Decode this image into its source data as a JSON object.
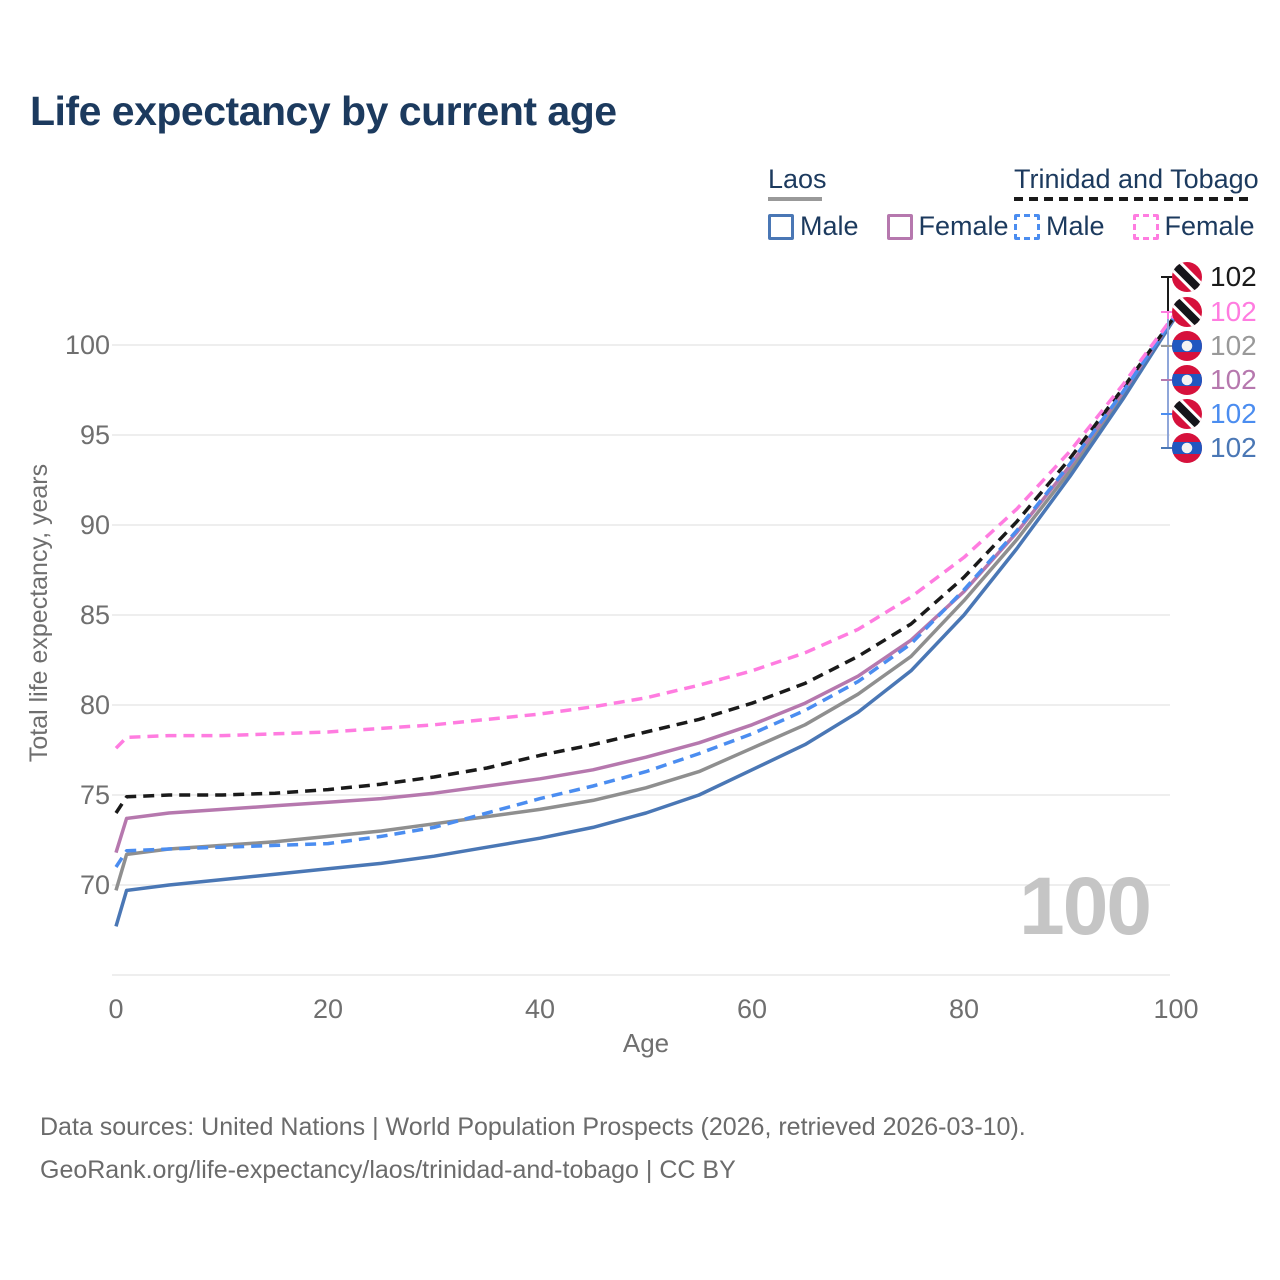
{
  "title": "Life expectancy by current age",
  "colors": {
    "title_text": "#1c3a5e",
    "axis_text": "#6f6f6f",
    "grid": "#e8e8e8",
    "watermark": "#c5c5c5",
    "footer_text": "#6b6b6b"
  },
  "legend": {
    "groups": [
      {
        "label": "Laos",
        "underline_color": "#999999",
        "underline_style": "solid",
        "items": [
          {
            "label": "Male",
            "color": "#4a77b5",
            "line_style": "solid"
          },
          {
            "label": "Female",
            "color": "#b678ae",
            "line_style": "solid"
          }
        ]
      },
      {
        "label": "Trinidad and Tobago",
        "underline_color": "#1a1a1a",
        "underline_style": "dashed",
        "items": [
          {
            "label": "Male",
            "color": "#4b8df0",
            "line_style": "dashed"
          },
          {
            "label": "Female",
            "color": "#ff7ce0",
            "line_style": "dashed"
          }
        ]
      }
    ]
  },
  "chart_data": {
    "type": "line",
    "title": "Life expectancy by current age",
    "xlabel": "Age",
    "ylabel": "Total life expectancy, years",
    "xlim": [
      0,
      100
    ],
    "ylim": [
      65,
      103
    ],
    "x_ticks": [
      0,
      20,
      40,
      60,
      80,
      100
    ],
    "y_ticks": [
      70,
      75,
      80,
      85,
      90,
      95,
      100
    ],
    "grid": "horizontal",
    "legend_position": "top-right",
    "x": [
      0,
      1,
      5,
      10,
      15,
      20,
      25,
      30,
      35,
      40,
      45,
      50,
      55,
      60,
      65,
      70,
      75,
      80,
      85,
      90,
      95,
      100
    ],
    "series": [
      {
        "id": "laos-both",
        "name": "Laos — Both sexes",
        "color": "#8f8f8f",
        "dash": false,
        "values": [
          69.7,
          71.7,
          72.0,
          72.2,
          72.4,
          72.7,
          73.0,
          73.4,
          73.8,
          74.2,
          74.7,
          75.4,
          76.3,
          77.6,
          78.9,
          80.6,
          82.7,
          85.8,
          89.2,
          93.0,
          97.2,
          101.6
        ]
      },
      {
        "id": "laos-male",
        "name": "Laos — Male",
        "color": "#4a77b5",
        "dash": false,
        "values": [
          67.7,
          69.7,
          70.0,
          70.3,
          70.6,
          70.9,
          71.2,
          71.6,
          72.1,
          72.6,
          73.2,
          74.0,
          75.0,
          76.4,
          77.8,
          79.6,
          81.9,
          85.0,
          88.7,
          92.7,
          97.0,
          101.6
        ]
      },
      {
        "id": "laos-female",
        "name": "Laos — Female",
        "color": "#b678ae",
        "dash": false,
        "values": [
          71.8,
          73.7,
          74.0,
          74.2,
          74.4,
          74.6,
          74.8,
          75.1,
          75.5,
          75.9,
          76.4,
          77.1,
          77.9,
          78.9,
          80.1,
          81.6,
          83.6,
          86.3,
          89.6,
          93.3,
          97.4,
          101.7
        ]
      },
      {
        "id": "tt-both",
        "name": "Trinidad and Tobago — Both sexes",
        "color": "#1a1a1a",
        "dash": true,
        "values": [
          74.0,
          74.9,
          75.0,
          75.0,
          75.1,
          75.3,
          75.6,
          76.0,
          76.5,
          77.2,
          77.8,
          78.5,
          79.2,
          80.1,
          81.2,
          82.7,
          84.5,
          87.1,
          90.2,
          93.7,
          97.6,
          101.7
        ]
      },
      {
        "id": "tt-male",
        "name": "Trinidad and Tobago — Male",
        "color": "#4b8df0",
        "dash": true,
        "values": [
          71.0,
          71.9,
          72.0,
          72.1,
          72.2,
          72.3,
          72.7,
          73.2,
          74.0,
          74.8,
          75.5,
          76.3,
          77.3,
          78.4,
          79.7,
          81.3,
          83.4,
          86.4,
          89.7,
          93.4,
          97.4,
          101.7
        ]
      },
      {
        "id": "tt-female",
        "name": "Trinidad and Tobago — Female",
        "color": "#ff7ce0",
        "dash": true,
        "values": [
          77.6,
          78.2,
          78.3,
          78.3,
          78.4,
          78.5,
          78.7,
          78.9,
          79.2,
          79.5,
          79.9,
          80.4,
          81.1,
          81.9,
          82.9,
          84.2,
          86.0,
          88.2,
          90.9,
          94.1,
          97.8,
          101.8
        ]
      }
    ]
  },
  "endpoints": {
    "items": [
      {
        "flag": "trinidad-and-tobago",
        "value": "102",
        "color": "#1a1a1a"
      },
      {
        "flag": "trinidad-and-tobago",
        "value": "102",
        "color": "#ff7ce0"
      },
      {
        "flag": "laos",
        "value": "102",
        "color": "#999999"
      },
      {
        "flag": "laos",
        "value": "102",
        "color": "#b678ae"
      },
      {
        "flag": "trinidad-and-tobago",
        "value": "102",
        "color": "#4b8df0"
      },
      {
        "flag": "laos",
        "value": "102",
        "color": "#4a77b5"
      }
    ]
  },
  "watermark": "100",
  "footer": {
    "line1": "Data sources: United Nations | World Population Prospects (2026, retrieved 2026-03-10).",
    "line2": "GeoRank.org/life-expectancy/laos/trinidad-and-tobago | CC BY"
  }
}
